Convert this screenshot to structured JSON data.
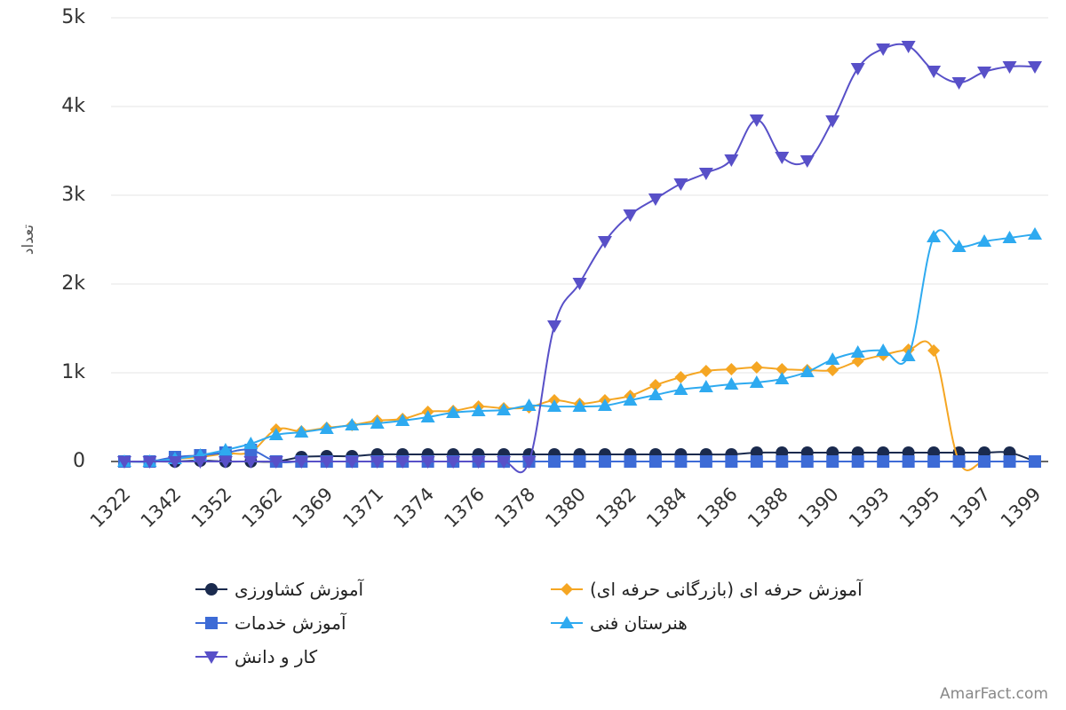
{
  "chart_data": {
    "type": "line",
    "xlabel": "",
    "ylabel": "تعداد",
    "ylim": [
      0,
      5000
    ],
    "y_ticks": [
      0,
      1000,
      2000,
      3000,
      4000,
      5000
    ],
    "y_tick_labels": [
      "0",
      "1k",
      "2k",
      "3k",
      "4k",
      "5k"
    ],
    "x_labels_visible": [
      "1322",
      "1342",
      "1352",
      "1362",
      "1369",
      "1371",
      "1374",
      "1376",
      "1378",
      "1380",
      "1382",
      "1384",
      "1386",
      "1388",
      "1390",
      "1393",
      "1395",
      "1397",
      "1399"
    ],
    "grid": "horizontal",
    "legend_placement": "bottom",
    "series": [
      {
        "name": "آموزش کشاورزی",
        "color": "#1a2a4e",
        "marker": "circle",
        "values": [
          0,
          0,
          0,
          10,
          0,
          0,
          0,
          50,
          60,
          60,
          80,
          80,
          80,
          80,
          80,
          80,
          80,
          80,
          80,
          80,
          80,
          80,
          80,
          80,
          80,
          100,
          100,
          100,
          100,
          100,
          100,
          100,
          100,
          100,
          100,
          100,
          0,
          0,
          0,
          0,
          0
        ]
      },
      {
        "name": "آموزش حرفه ای (بازرگانی حرفه ای)",
        "color": "#f5a623",
        "marker": "diamond",
        "values": [
          0,
          0,
          30,
          50,
          90,
          110,
          360,
          340,
          380,
          410,
          460,
          480,
          560,
          570,
          620,
          600,
          610,
          690,
          650,
          690,
          740,
          860,
          950,
          1020,
          1040,
          1060,
          1040,
          1030,
          1030,
          1130,
          1200,
          1260,
          1250,
          0,
          0,
          0,
          0,
          0,
          0,
          0,
          0
        ]
      },
      {
        "name": "آموزش خدمات",
        "color": "#3d6bd6",
        "marker": "square",
        "values": [
          0,
          0,
          50,
          70,
          100,
          130,
          0,
          0,
          0,
          0,
          0,
          0,
          0,
          0,
          0,
          0,
          0,
          0,
          0,
          0,
          0,
          0,
          0,
          0,
          0,
          0,
          0,
          0,
          0,
          0,
          0,
          0,
          0,
          0,
          0,
          0,
          0,
          0,
          0,
          0,
          0
        ]
      },
      {
        "name": "هنرستان فنی",
        "color": "#2eaaf0",
        "marker": "triangle-up",
        "values": [
          0,
          0,
          30,
          70,
          130,
          200,
          300,
          330,
          370,
          410,
          430,
          460,
          500,
          550,
          570,
          580,
          630,
          620,
          620,
          630,
          690,
          750,
          810,
          840,
          870,
          890,
          930,
          1010,
          1150,
          1230,
          1250,
          1190,
          2530,
          2420,
          2480,
          2520,
          2560
        ]
      },
      {
        "name": "کار و دانش",
        "color": "#5850c8",
        "marker": "triangle-down",
        "values": [
          0,
          0,
          0,
          0,
          0,
          0,
          0,
          0,
          0,
          0,
          0,
          0,
          0,
          0,
          0,
          0,
          0,
          1530,
          2010,
          2480,
          2780,
          2960,
          3130,
          3250,
          3400,
          3850,
          3430,
          3390,
          3840,
          4430,
          4650,
          4680,
          4400,
          4270,
          4390,
          4450,
          4450
        ]
      }
    ]
  },
  "footer": {
    "credit": "AmarFact.com"
  }
}
